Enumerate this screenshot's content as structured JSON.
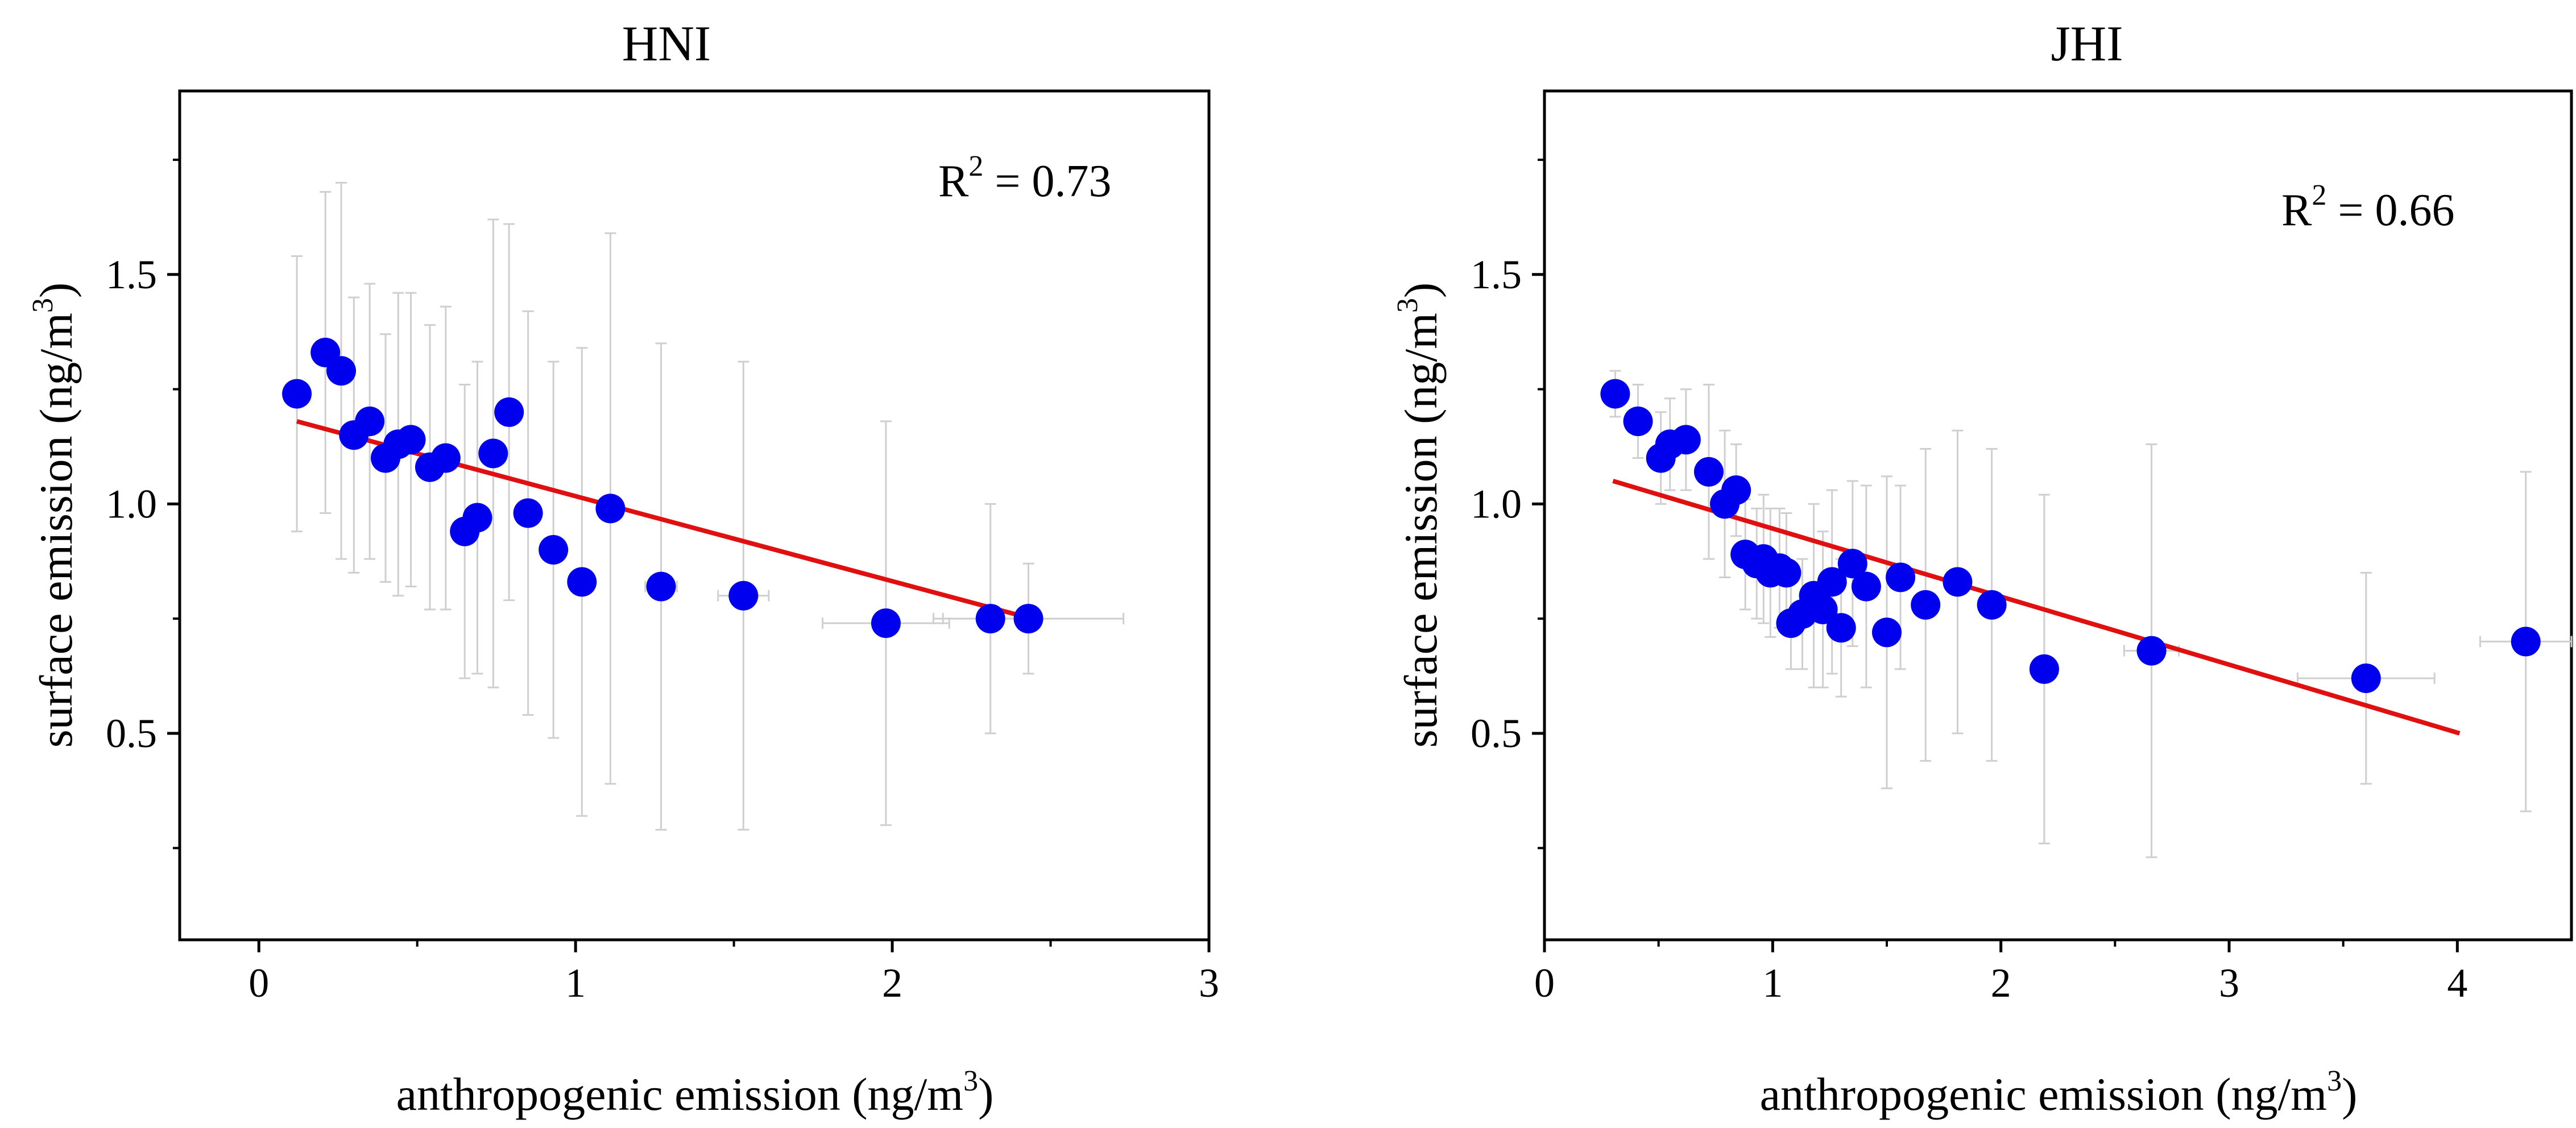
{
  "colors": {
    "marker": "#0000ee",
    "fit_line": "#e01010",
    "error_bar": "#cfcfcf",
    "axis": "#000000"
  },
  "chart_data": [
    {
      "type": "scatter",
      "title": "HNI",
      "xlabel": "anthropogenic emission (ng/m3)",
      "xlabel_main": "anthropogenic emission (ng/m",
      "xlabel_sup": "3",
      "xlabel_end": ")",
      "ylabel": "surface emission (ng/m3)",
      "ylabel_main": "surface emission (ng/m",
      "ylabel_sup": "3",
      "ylabel_end": ")",
      "xlim": [
        -0.25,
        3.0
      ],
      "ylim": [
        0.05,
        1.9
      ],
      "xticks": [
        0,
        1,
        2,
        3
      ],
      "xtick_labels": [
        "0",
        "1",
        "2",
        "3"
      ],
      "yticks": [
        0.5,
        1.0,
        1.5
      ],
      "ytick_labels": [
        "0.5",
        "1.0",
        "1.5"
      ],
      "annotation": "R2 = 0.73",
      "annotation_main": "R",
      "annotation_sup": "2",
      "annotation_value": " = 0.73",
      "points": [
        {
          "x": 0.12,
          "y": 1.24,
          "y_err": 0.3,
          "x_err": 0.02
        },
        {
          "x": 0.21,
          "y": 1.33,
          "y_err": 0.35,
          "x_err": 0.02
        },
        {
          "x": 0.26,
          "y": 1.29,
          "y_err": 0.41,
          "x_err": 0.02
        },
        {
          "x": 0.3,
          "y": 1.15,
          "y_err": 0.3,
          "x_err": 0.02
        },
        {
          "x": 0.35,
          "y": 1.18,
          "y_err": 0.3,
          "x_err": 0.02
        },
        {
          "x": 0.4,
          "y": 1.1,
          "y_err": 0.27,
          "x_err": 0.02
        },
        {
          "x": 0.44,
          "y": 1.13,
          "y_err": 0.33,
          "x_err": 0.02
        },
        {
          "x": 0.48,
          "y": 1.14,
          "y_err": 0.32,
          "x_err": 0.02
        },
        {
          "x": 0.54,
          "y": 1.08,
          "y_err": 0.31,
          "x_err": 0.02
        },
        {
          "x": 0.59,
          "y": 1.1,
          "y_err": 0.33,
          "x_err": 0.02
        },
        {
          "x": 0.65,
          "y": 0.94,
          "y_err": 0.32,
          "x_err": 0.02
        },
        {
          "x": 0.69,
          "y": 0.97,
          "y_err": 0.34,
          "x_err": 0.02
        },
        {
          "x": 0.74,
          "y": 1.11,
          "y_err": 0.51,
          "x_err": 0.02
        },
        {
          "x": 0.79,
          "y": 1.2,
          "y_err": 0.41,
          "x_err": 0.02
        },
        {
          "x": 0.85,
          "y": 0.98,
          "y_err": 0.44,
          "x_err": 0.02
        },
        {
          "x": 0.93,
          "y": 0.9,
          "y_err": 0.41,
          "x_err": 0.02
        },
        {
          "x": 1.02,
          "y": 0.83,
          "y_err": 0.51,
          "x_err": 0.02
        },
        {
          "x": 1.11,
          "y": 0.99,
          "y_err": 0.6,
          "x_err": 0.02
        },
        {
          "x": 1.27,
          "y": 0.82,
          "y_err": 0.53,
          "x_err": 0.05
        },
        {
          "x": 1.53,
          "y": 0.8,
          "y_err": 0.51,
          "x_err": 0.08
        },
        {
          "x": 1.98,
          "y": 0.74,
          "y_err": 0.44,
          "x_err": 0.2
        },
        {
          "x": 2.31,
          "y": 0.75,
          "y_err": 0.25,
          "x_err": 0.15
        },
        {
          "x": 2.43,
          "y": 0.75,
          "y_err": 0.12,
          "x_err": 0.3
        }
      ],
      "fit_line": {
        "x": [
          0.12,
          2.44
        ],
        "y": [
          1.18,
          0.75
        ]
      }
    },
    {
      "type": "scatter",
      "title": "JHI",
      "xlabel": "anthropogenic emission (ng/m3)",
      "xlabel_main": "anthropogenic emission (ng/m",
      "xlabel_sup": "3",
      "xlabel_end": ")",
      "ylabel": "surface emission (ng/m3)",
      "ylabel_main": "surface emission (ng/m",
      "ylabel_sup": "3",
      "ylabel_end": ")",
      "xlim": [
        0,
        4.5
      ],
      "ylim": [
        0.05,
        1.9
      ],
      "xticks": [
        0,
        1,
        2,
        3,
        4
      ],
      "xtick_labels": [
        "0",
        "1",
        "2",
        "3",
        "4"
      ],
      "yticks": [
        0.5,
        1.0,
        1.5
      ],
      "ytick_labels": [
        "0.5",
        "1.0",
        "1.5"
      ],
      "annotation": "R2 = 0.66",
      "annotation_main": "R",
      "annotation_sup": "2",
      "annotation_value": " = 0.66",
      "points": [
        {
          "x": 0.31,
          "y": 1.24,
          "y_err": 0.05,
          "x_err": 0.02
        },
        {
          "x": 0.41,
          "y": 1.18,
          "y_err": 0.08,
          "x_err": 0.02
        },
        {
          "x": 0.51,
          "y": 1.1,
          "y_err": 0.1,
          "x_err": 0.02
        },
        {
          "x": 0.55,
          "y": 1.13,
          "y_err": 0.1,
          "x_err": 0.02
        },
        {
          "x": 0.62,
          "y": 1.14,
          "y_err": 0.11,
          "x_err": 0.02
        },
        {
          "x": 0.72,
          "y": 1.07,
          "y_err": 0.19,
          "x_err": 0.02
        },
        {
          "x": 0.79,
          "y": 1.0,
          "y_err": 0.16,
          "x_err": 0.02
        },
        {
          "x": 0.84,
          "y": 1.03,
          "y_err": 0.1,
          "x_err": 0.02
        },
        {
          "x": 0.88,
          "y": 0.89,
          "y_err": 0.12,
          "x_err": 0.02
        },
        {
          "x": 0.93,
          "y": 0.87,
          "y_err": 0.12,
          "x_err": 0.02
        },
        {
          "x": 0.96,
          "y": 0.88,
          "y_err": 0.14,
          "x_err": 0.02
        },
        {
          "x": 0.99,
          "y": 0.85,
          "y_err": 0.14,
          "x_err": 0.02
        },
        {
          "x": 1.03,
          "y": 0.86,
          "y_err": 0.13,
          "x_err": 0.02
        },
        {
          "x": 1.06,
          "y": 0.85,
          "y_err": 0.13,
          "x_err": 0.02
        },
        {
          "x": 1.08,
          "y": 0.74,
          "y_err": 0.1,
          "x_err": 0.02
        },
        {
          "x": 1.13,
          "y": 0.76,
          "y_err": 0.12,
          "x_err": 0.02
        },
        {
          "x": 1.18,
          "y": 0.8,
          "y_err": 0.2,
          "x_err": 0.02
        },
        {
          "x": 1.22,
          "y": 0.77,
          "y_err": 0.17,
          "x_err": 0.02
        },
        {
          "x": 1.26,
          "y": 0.83,
          "y_err": 0.2,
          "x_err": 0.02
        },
        {
          "x": 1.3,
          "y": 0.73,
          "y_err": 0.15,
          "x_err": 0.02
        },
        {
          "x": 1.35,
          "y": 0.87,
          "y_err": 0.18,
          "x_err": 0.02
        },
        {
          "x": 1.41,
          "y": 0.82,
          "y_err": 0.22,
          "x_err": 0.02
        },
        {
          "x": 1.5,
          "y": 0.72,
          "y_err": 0.34,
          "x_err": 0.02
        },
        {
          "x": 1.56,
          "y": 0.84,
          "y_err": 0.2,
          "x_err": 0.03
        },
        {
          "x": 1.67,
          "y": 0.78,
          "y_err": 0.34,
          "x_err": 0.03
        },
        {
          "x": 1.81,
          "y": 0.83,
          "y_err": 0.33,
          "x_err": 0.04
        },
        {
          "x": 1.96,
          "y": 0.78,
          "y_err": 0.34,
          "x_err": 0.04
        },
        {
          "x": 2.19,
          "y": 0.64,
          "y_err": 0.38,
          "x_err": 0.06
        },
        {
          "x": 2.66,
          "y": 0.68,
          "y_err": 0.45,
          "x_err": 0.12
        },
        {
          "x": 3.6,
          "y": 0.62,
          "y_err": 0.23,
          "x_err": 0.3
        },
        {
          "x": 4.3,
          "y": 0.7,
          "y_err": 0.37,
          "x_err": 0.2
        }
      ],
      "fit_line": {
        "x": [
          0.3,
          4.01
        ],
        "y": [
          1.05,
          0.5
        ]
      }
    }
  ]
}
